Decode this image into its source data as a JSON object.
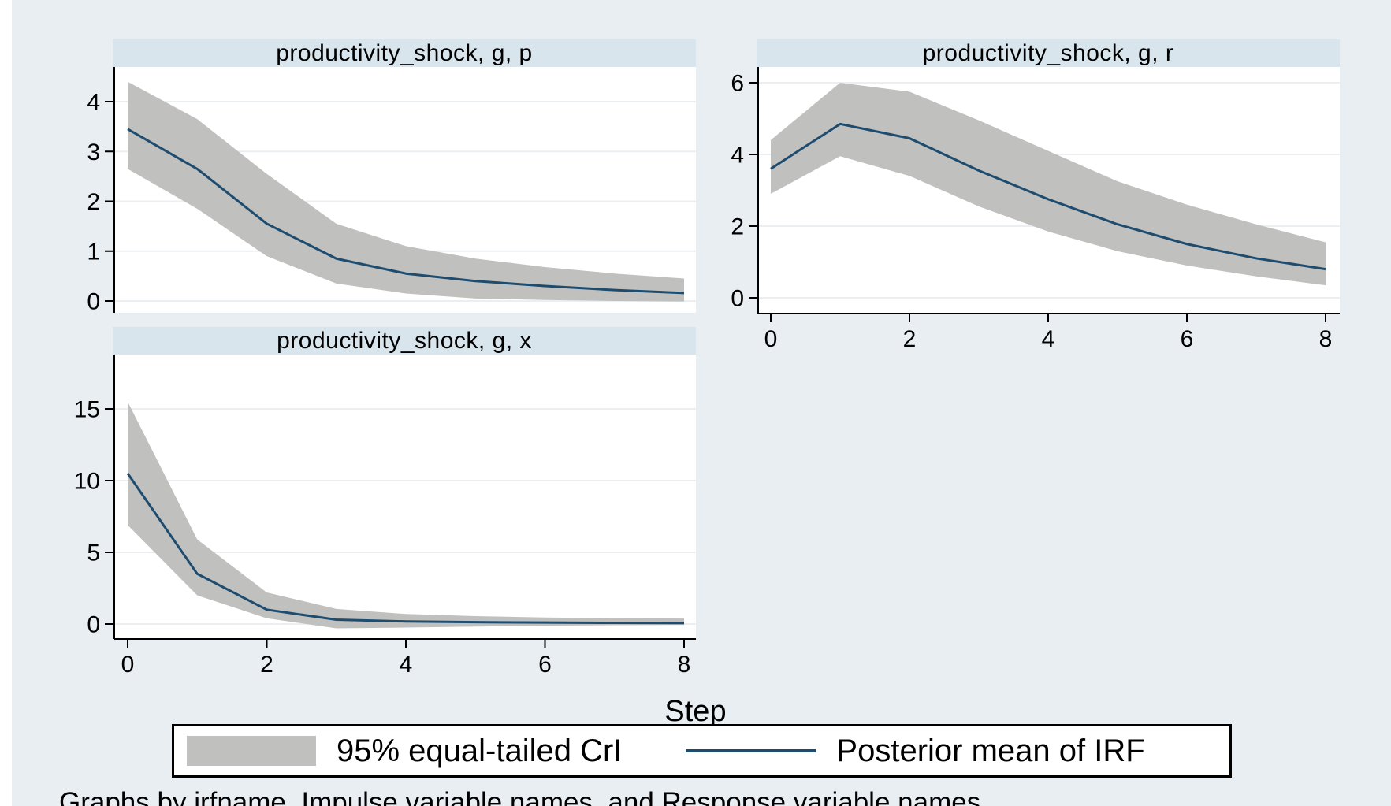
{
  "figure": {
    "background_color": "#e8eef2",
    "plot_background": "#ffffff",
    "title_bar_color": "#d9e5ec",
    "grid_color": "#eceff1",
    "band_color": "#c0c0bf",
    "line_color": "#1e4c6f",
    "axis_color": "#000000",
    "xlabel": "Step",
    "note": "Graphs by irfname, Impulse variable names, and Response variable names",
    "legend": {
      "band_label": "95% equal-tailed CrI",
      "line_label": "Posterior mean of IRF"
    }
  },
  "chart_data": [
    {
      "type": "area",
      "title": "productivity_shock, g, p",
      "x": [
        0,
        1,
        2,
        3,
        4,
        5,
        6,
        7,
        8
      ],
      "series": [
        {
          "name": "95% CrI upper bound",
          "values": [
            4.4,
            3.65,
            2.55,
            1.55,
            1.1,
            0.85,
            0.68,
            0.55,
            0.45
          ]
        },
        {
          "name": "Posterior mean of IRF",
          "values": [
            3.45,
            2.65,
            1.55,
            0.85,
            0.55,
            0.4,
            0.3,
            0.22,
            0.16
          ]
        },
        {
          "name": "95% CrI lower bound",
          "values": [
            2.65,
            1.85,
            0.9,
            0.35,
            0.15,
            0.05,
            0.02,
            0.0,
            -0.01
          ]
        }
      ],
      "yticks": [
        0,
        1,
        2,
        3,
        4
      ],
      "xticks": [
        0,
        2,
        4,
        6,
        8
      ],
      "show_x_axis": false,
      "ylim": [
        -0.24,
        4.7
      ],
      "xlim": [
        -0.19,
        8.17
      ],
      "grid": true,
      "legend_position": "bottom"
    },
    {
      "type": "area",
      "title": "productivity_shock, g, r",
      "x": [
        0,
        1,
        2,
        3,
        4,
        5,
        6,
        7,
        8
      ],
      "series": [
        {
          "name": "95% CrI upper bound",
          "values": [
            4.4,
            6.0,
            5.75,
            4.95,
            4.1,
            3.25,
            2.6,
            2.05,
            1.55
          ]
        },
        {
          "name": "Posterior mean of IRF",
          "values": [
            3.6,
            4.85,
            4.45,
            3.55,
            2.75,
            2.05,
            1.5,
            1.1,
            0.8
          ]
        },
        {
          "name": "95% CrI lower bound",
          "values": [
            2.9,
            3.95,
            3.4,
            2.55,
            1.85,
            1.3,
            0.9,
            0.6,
            0.35
          ]
        }
      ],
      "yticks": [
        0,
        2,
        4,
        6
      ],
      "xticks": [
        0,
        2,
        4,
        6,
        8
      ],
      "show_x_axis": true,
      "ylim": [
        -0.44,
        6.44
      ],
      "xlim": [
        -0.19,
        8.2
      ],
      "grid": true,
      "legend_position": "bottom"
    },
    {
      "type": "area",
      "title": "productivity_shock, g, x",
      "x": [
        0,
        1,
        2,
        3,
        4,
        5,
        6,
        7,
        8
      ],
      "series": [
        {
          "name": "95% CrI upper bound",
          "values": [
            15.5,
            5.9,
            2.2,
            1.05,
            0.7,
            0.55,
            0.45,
            0.4,
            0.38
          ]
        },
        {
          "name": "Posterior mean of IRF",
          "values": [
            10.5,
            3.5,
            1.0,
            0.3,
            0.18,
            0.13,
            0.1,
            0.08,
            0.07
          ]
        },
        {
          "name": "95% CrI lower bound",
          "values": [
            6.9,
            2.0,
            0.4,
            -0.3,
            -0.25,
            -0.18,
            -0.12,
            -0.08,
            -0.06
          ]
        }
      ],
      "yticks": [
        0,
        5,
        10,
        15
      ],
      "xticks": [
        0,
        2,
        4,
        6,
        8
      ],
      "show_x_axis": true,
      "ylim": [
        -1.04,
        18.79
      ],
      "xlim": [
        -0.19,
        8.17
      ],
      "grid": true,
      "legend_position": "bottom"
    }
  ]
}
